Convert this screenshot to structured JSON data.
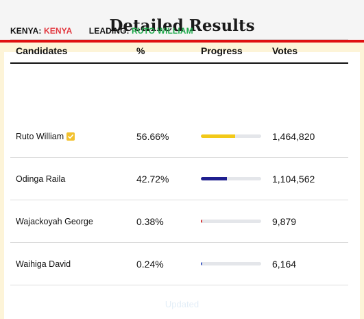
{
  "header": {
    "title": "Detailed Results"
  },
  "meta": {
    "country_label": "KENYA:",
    "country_value": "KENYA",
    "leading_label": "LEADING:",
    "leading_value": "RUTO WILLIAM"
  },
  "table": {
    "columns": [
      "Candidates",
      "%",
      "Progress",
      "Votes"
    ],
    "rows": [
      {
        "name": "Ruto William",
        "pct": "56.66%",
        "progress": 0.5666,
        "color": "#f2c919",
        "votes": "1,464,820",
        "verified": true
      },
      {
        "name": "Odinga Raila",
        "pct": "42.72%",
        "progress": 0.4272,
        "color": "#1f1f8f",
        "votes": "1,104,562",
        "verified": false
      },
      {
        "name": "Wajackoyah George",
        "pct": "0.38%",
        "progress": 0.0038,
        "color": "#d62b2b",
        "votes": "9,879",
        "verified": false
      },
      {
        "name": "Waihiga David",
        "pct": "0.24%",
        "progress": 0.0024,
        "color": "#3a55c2",
        "votes": "6,164",
        "verified": false
      }
    ]
  },
  "footer": {
    "updated_label": "Updated"
  },
  "icons": {
    "verified": "check-badge-icon"
  },
  "colors": {
    "accent_red": "#e01010",
    "kenya": "#e2383f",
    "leading": "#1faa4b",
    "panel": "#fdf4d8"
  }
}
